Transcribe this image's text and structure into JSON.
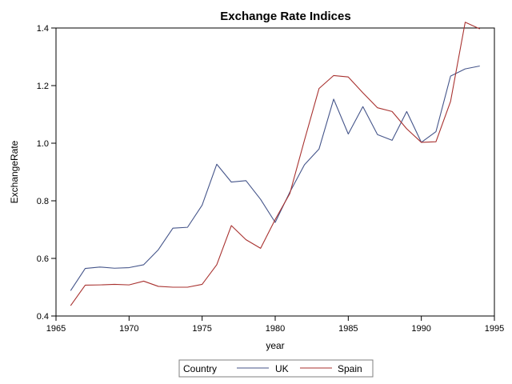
{
  "chart_data": {
    "type": "line",
    "title": "Exchange Rate Indices",
    "xlabel": "year",
    "ylabel": "ExchangeRate",
    "xlim": [
      1965,
      1995
    ],
    "ylim": [
      0.4,
      1.4
    ],
    "x_ticks": [
      1965,
      1970,
      1975,
      1980,
      1985,
      1990,
      1995
    ],
    "y_ticks": [
      0.4,
      0.6,
      0.8,
      1.0,
      1.2,
      1.4
    ],
    "grid": false,
    "legend": {
      "title": "Country",
      "placement": "bottom-center"
    },
    "x": [
      1966,
      1967,
      1968,
      1969,
      1970,
      1971,
      1972,
      1973,
      1974,
      1975,
      1976,
      1977,
      1978,
      1979,
      1980,
      1981,
      1982,
      1983,
      1984,
      1985,
      1986,
      1987,
      1988,
      1989,
      1990,
      1991,
      1992,
      1993,
      1994
    ],
    "series": [
      {
        "name": "UK",
        "color": "#45558a",
        "values": [
          0.488,
          0.565,
          0.57,
          0.566,
          0.568,
          0.578,
          0.63,
          0.705,
          0.708,
          0.785,
          0.927,
          0.865,
          0.87,
          0.805,
          0.725,
          0.83,
          0.925,
          0.98,
          1.153,
          1.032,
          1.127,
          1.03,
          1.01,
          1.11,
          1.003,
          1.04,
          1.233,
          1.258,
          1.268
        ]
      },
      {
        "name": "Spain",
        "color": "#a8312f",
        "values": [
          0.436,
          0.507,
          0.508,
          0.51,
          0.508,
          0.521,
          0.503,
          0.5,
          0.5,
          0.51,
          0.578,
          0.714,
          0.665,
          0.635,
          0.735,
          0.825,
          1.01,
          1.19,
          1.235,
          1.23,
          1.175,
          1.123,
          1.11,
          1.05,
          1.003,
          1.005,
          1.145,
          1.42,
          1.397
        ]
      }
    ]
  }
}
